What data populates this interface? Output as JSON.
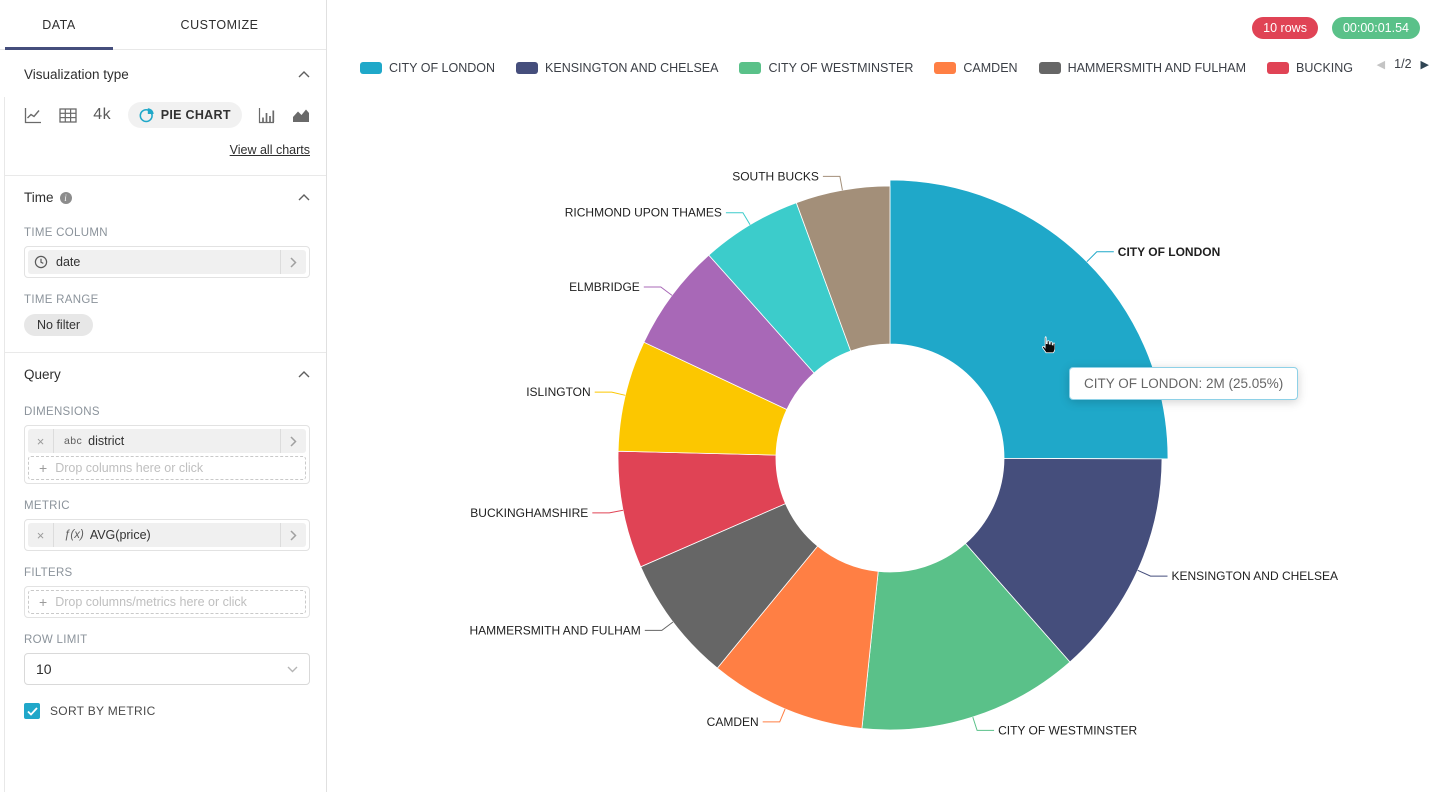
{
  "colors": {
    "accent": "#20a7c9",
    "tab_underline": "#454e7c",
    "rows_badge": "#e04355",
    "timer_badge": "#5ac189"
  },
  "sidebar": {
    "tabs": [
      {
        "label": "DATA",
        "active": true
      },
      {
        "label": "CUSTOMIZE",
        "active": false
      }
    ],
    "viz_section": {
      "title": "Visualization type",
      "icons": [
        "line-chart",
        "table",
        "big-number",
        "pie-chart",
        "bar-chart",
        "area-chart"
      ],
      "big_number_text": "4k",
      "selected_chart": "PIE CHART",
      "view_all_label": "View all charts"
    },
    "time_section": {
      "title": "Time",
      "time_column_label": "TIME COLUMN",
      "time_column_value": "date",
      "time_range_label": "TIME RANGE",
      "time_range_value": "No filter"
    },
    "query_section": {
      "title": "Query",
      "dimensions_label": "DIMENSIONS",
      "dimension_type_tag": "abc",
      "dimension_value": "district",
      "dimensions_placeholder": "Drop columns here or click",
      "metric_label": "METRIC",
      "metric_type_tag": "ƒ(x)",
      "metric_value": "AVG(price)",
      "filters_label": "FILTERS",
      "filters_placeholder": "Drop columns/metrics here or click",
      "row_limit_label": "ROW LIMIT",
      "row_limit_value": "10",
      "sort_by_metric_label": "SORT BY METRIC",
      "sort_by_metric_checked": true
    }
  },
  "header": {
    "rows_badge": "10 rows",
    "timer_badge": "00:00:01.54"
  },
  "chart_data": {
    "type": "pie",
    "donut": true,
    "dimension": "district",
    "metric": "AVG(price)",
    "slices": [
      {
        "label": "CITY OF LONDON",
        "percent": 25.05,
        "value_label": "2M",
        "color": "#1fa8c9",
        "hovered": true
      },
      {
        "label": "KENSINGTON AND CHELSEA",
        "percent": 13.45,
        "color": "#454e7c"
      },
      {
        "label": "CITY OF WESTMINSTER",
        "percent": 13.15,
        "color": "#5ac189"
      },
      {
        "label": "CAMDEN",
        "percent": 9.3,
        "color": "#ff7f44"
      },
      {
        "label": "HAMMERSMITH AND FULHAM",
        "percent": 7.5,
        "color": "#666666"
      },
      {
        "label": "BUCKINGHAMSHIRE",
        "percent": 6.95,
        "color": "#e04355"
      },
      {
        "label": "ISLINGTON",
        "percent": 6.6,
        "color": "#fcc700"
      },
      {
        "label": "ELMBRIDGE",
        "percent": 6.4,
        "color": "#a868b7"
      },
      {
        "label": "RICHMOND UPON THAMES",
        "percent": 6.0,
        "color": "#3ccccb"
      },
      {
        "label": "SOUTH BUCKS",
        "percent": 5.6,
        "color": "#a38f79"
      }
    ],
    "legend": {
      "visible_count": 6,
      "overflow_swatch_color": "#fcc700",
      "page_label": "1/2"
    },
    "tooltip_text": "CITY OF LONDON: 2M (25.05%)",
    "hovered_slice": "CITY OF LONDON"
  }
}
